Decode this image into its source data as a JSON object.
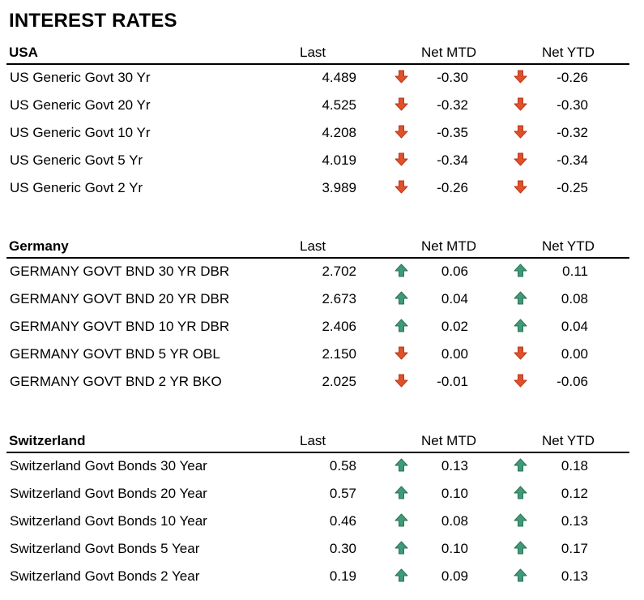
{
  "title": "INTEREST RATES",
  "colors": {
    "down": "#e0502a",
    "down_dark": "#b8381a",
    "up": "#3f9a78",
    "up_dark": "#2a7055"
  },
  "sections": [
    {
      "name": "USA",
      "col_last": "Last",
      "col_mtd": "Net MTD",
      "col_ytd": "Net YTD",
      "rows": [
        {
          "name": "US Generic Govt 30 Yr",
          "last": "4.489",
          "mtd_dir": "down",
          "mtd": "-0.30",
          "ytd_dir": "down",
          "ytd": "-0.26"
        },
        {
          "name": "US Generic Govt 20 Yr",
          "last": "4.525",
          "mtd_dir": "down",
          "mtd": "-0.32",
          "ytd_dir": "down",
          "ytd": "-0.30"
        },
        {
          "name": "US Generic Govt 10 Yr",
          "last": "4.208",
          "mtd_dir": "down",
          "mtd": "-0.35",
          "ytd_dir": "down",
          "ytd": "-0.32"
        },
        {
          "name": "US Generic Govt 5 Yr",
          "last": "4.019",
          "mtd_dir": "down",
          "mtd": "-0.34",
          "ytd_dir": "down",
          "ytd": "-0.34"
        },
        {
          "name": "US Generic Govt 2 Yr",
          "last": "3.989",
          "mtd_dir": "down",
          "mtd": "-0.26",
          "ytd_dir": "down",
          "ytd": "-0.25"
        }
      ]
    },
    {
      "name": "Germany",
      "col_last": "Last",
      "col_mtd": "Net MTD",
      "col_ytd": "Net YTD",
      "rows": [
        {
          "name": "GERMANY GOVT BND 30 YR DBR",
          "last": "2.702",
          "mtd_dir": "up",
          "mtd": "0.06",
          "ytd_dir": "up",
          "ytd": "0.11"
        },
        {
          "name": "GERMANY GOVT BND 20 YR DBR",
          "last": "2.673",
          "mtd_dir": "up",
          "mtd": "0.04",
          "ytd_dir": "up",
          "ytd": "0.08"
        },
        {
          "name": "GERMANY GOVT BND 10 YR DBR",
          "last": "2.406",
          "mtd_dir": "up",
          "mtd": "0.02",
          "ytd_dir": "up",
          "ytd": "0.04"
        },
        {
          "name": "GERMANY GOVT BND 5 YR OBL",
          "last": "2.150",
          "mtd_dir": "down",
          "mtd": "0.00",
          "ytd_dir": "down",
          "ytd": "0.00"
        },
        {
          "name": "GERMANY GOVT BND 2 YR BKO",
          "last": "2.025",
          "mtd_dir": "down",
          "mtd": "-0.01",
          "ytd_dir": "down",
          "ytd": "-0.06"
        }
      ]
    },
    {
      "name": "Switzerland",
      "col_last": "Last",
      "col_mtd": "Net MTD",
      "col_ytd": "Net YTD",
      "rows": [
        {
          "name": "Switzerland Govt Bonds 30 Year",
          "last": "0.58",
          "mtd_dir": "up",
          "mtd": "0.13",
          "ytd_dir": "up",
          "ytd": "0.18"
        },
        {
          "name": "Switzerland Govt Bonds 20 Year",
          "last": "0.57",
          "mtd_dir": "up",
          "mtd": "0.10",
          "ytd_dir": "up",
          "ytd": "0.12"
        },
        {
          "name": "Switzerland Govt Bonds 10 Year",
          "last": "0.46",
          "mtd_dir": "up",
          "mtd": "0.08",
          "ytd_dir": "up",
          "ytd": "0.13"
        },
        {
          "name": "Switzerland Govt Bonds 5 Year",
          "last": "0.30",
          "mtd_dir": "up",
          "mtd": "0.10",
          "ytd_dir": "up",
          "ytd": "0.17"
        },
        {
          "name": "Switzerland Govt Bonds 2 Year",
          "last": "0.19",
          "mtd_dir": "up",
          "mtd": "0.09",
          "ytd_dir": "up",
          "ytd": "0.13"
        }
      ]
    }
  ]
}
